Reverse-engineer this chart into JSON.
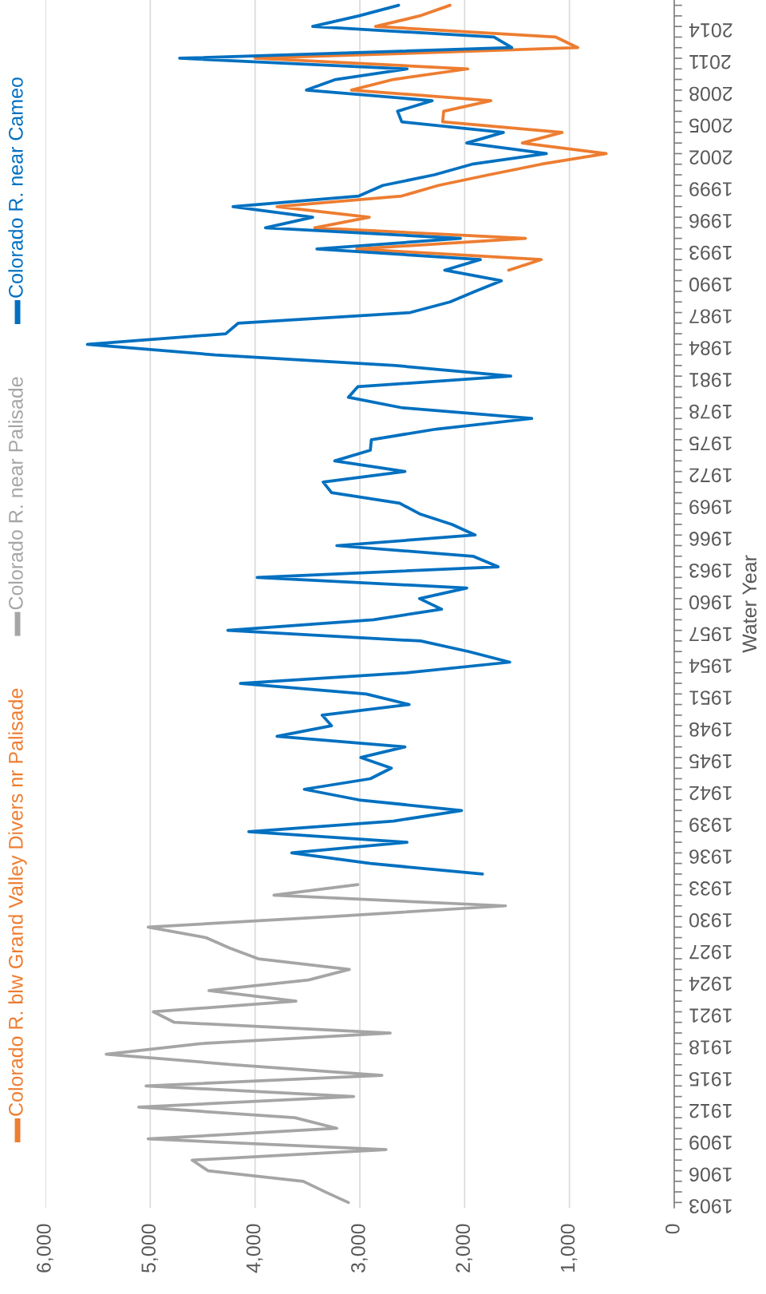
{
  "chart_data": {
    "type": "line",
    "ylabel": "Water Year",
    "ylim": [
      1902.5,
      2016.5
    ],
    "yticks": [
      1903,
      {
        "value": 1904,
        "label": null
      },
      {
        "value": 1905,
        "label": null
      },
      1906,
      {
        "value": 1907,
        "label": null
      },
      {
        "value": 1908,
        "label": null
      },
      1909,
      {
        "value": 1910,
        "label": null
      },
      {
        "value": 1911,
        "label": null
      },
      1912,
      {
        "value": 1913,
        "label": null
      },
      {
        "value": 1914,
        "label": null
      },
      1915,
      {
        "value": 1916,
        "label": null
      },
      {
        "value": 1917,
        "label": null
      },
      1918,
      {
        "value": 1919,
        "label": null
      },
      {
        "value": 1920,
        "label": null
      },
      1921,
      {
        "value": 1922,
        "label": null
      },
      {
        "value": 1923,
        "label": null
      },
      1924,
      {
        "value": 1925,
        "label": null
      },
      {
        "value": 1926,
        "label": null
      },
      1927,
      {
        "value": 1928,
        "label": null
      },
      {
        "value": 1929,
        "label": null
      },
      1930,
      {
        "value": 1931,
        "label": null
      },
      {
        "value": 1932,
        "label": null
      },
      1933,
      {
        "value": 1934,
        "label": null
      },
      {
        "value": 1935,
        "label": null
      },
      1936,
      {
        "value": 1937,
        "label": null
      },
      {
        "value": 1938,
        "label": null
      },
      1939,
      {
        "value": 1940,
        "label": null
      },
      {
        "value": 1941,
        "label": null
      },
      1942,
      {
        "value": 1943,
        "label": null
      },
      {
        "value": 1944,
        "label": null
      },
      1945,
      {
        "value": 1946,
        "label": null
      },
      {
        "value": 1947,
        "label": null
      },
      1948,
      {
        "value": 1949,
        "label": null
      },
      {
        "value": 1950,
        "label": null
      },
      1951,
      {
        "value": 1952,
        "label": null
      },
      {
        "value": 1953,
        "label": null
      },
      1954,
      {
        "value": 1955,
        "label": null
      },
      {
        "value": 1956,
        "label": null
      },
      1957,
      {
        "value": 1958,
        "label": null
      },
      {
        "value": 1959,
        "label": null
      },
      1960,
      {
        "value": 1961,
        "label": null
      },
      {
        "value": 1962,
        "label": null
      },
      1963,
      {
        "value": 1964,
        "label": null
      },
      {
        "value": 1965,
        "label": null
      },
      1966,
      {
        "value": 1967,
        "label": null
      },
      {
        "value": 1968,
        "label": null
      },
      1969,
      {
        "value": 1970,
        "label": null
      },
      {
        "value": 1971,
        "label": null
      },
      1972,
      {
        "value": 1973,
        "label": null
      },
      {
        "value": 1974,
        "label": null
      },
      1975,
      {
        "value": 1976,
        "label": null
      },
      {
        "value": 1977,
        "label": null
      },
      1978,
      {
        "value": 1979,
        "label": null
      },
      {
        "value": 1980,
        "label": null
      },
      1981,
      {
        "value": 1982,
        "label": null
      },
      {
        "value": 1983,
        "label": null
      },
      1984,
      {
        "value": 1985,
        "label": null
      },
      {
        "value": 1986,
        "label": null
      },
      1987,
      {
        "value": 1988,
        "label": null
      },
      {
        "value": 1989,
        "label": null
      },
      1990,
      {
        "value": 1991,
        "label": null
      },
      {
        "value": 1992,
        "label": null
      },
      1993,
      {
        "value": 1994,
        "label": null
      },
      {
        "value": 1995,
        "label": null
      },
      1996,
      {
        "value": 1997,
        "label": null
      },
      {
        "value": 1998,
        "label": null
      },
      1999,
      {
        "value": 2000,
        "label": null
      },
      {
        "value": 2001,
        "label": null
      },
      2002,
      {
        "value": 2003,
        "label": null
      },
      {
        "value": 2004,
        "label": null
      },
      2005,
      {
        "value": 2006,
        "label": null
      },
      {
        "value": 2007,
        "label": null
      },
      2008,
      {
        "value": 2009,
        "label": null
      },
      {
        "value": 2010,
        "label": null
      },
      2011,
      {
        "value": 2012,
        "label": null
      },
      {
        "value": 2013,
        "label": null
      },
      2014,
      {
        "value": 2015,
        "label": null
      },
      {
        "value": 2016,
        "label": null
      }
    ],
    "xlim": [
      6000,
      0
    ],
    "xticks": [
      0,
      {
        "value": 1000,
        "label": "1,000"
      },
      {
        "value": 2000,
        "label": "2,000"
      },
      {
        "value": 3000,
        "label": "3,000"
      },
      {
        "value": 4000,
        "label": "4,000"
      },
      {
        "value": 5000,
        "label": "5,000"
      },
      {
        "value": 6000,
        "label": "6,000"
      }
    ],
    "grid": "x",
    "legend": "left",
    "marker": "none",
    "line_style": "solid",
    "series": [
      {
        "name": "Colorado R. blw Grand Valley Divers nr Palisade",
        "color": "#ed7d31",
        "values": [
          1991,
          1992,
          1993,
          1994,
          1995,
          1996,
          1997,
          1998,
          1999,
          2000,
          2001,
          2002,
          2003,
          2004,
          2005,
          2006,
          2007,
          2008,
          2009,
          2010,
          2011,
          2012,
          2013,
          2014,
          2015,
          2016
        ],
        "x": [
          1580,
          1270,
          3030,
          1420,
          3430,
          2910,
          3790,
          2600,
          2250,
          1770,
          1270,
          650,
          1450,
          1070,
          2210,
          2200,
          1750,
          3080,
          2680,
          1970,
          4000,
          920,
          1130,
          2850,
          2430,
          2140
        ]
      },
      {
        "name": "Colorado R. near Palisade",
        "color": "#a5a5a5",
        "values": [
          1903,
          1904,
          1905,
          1906,
          1907,
          1908,
          1909,
          1910,
          1911,
          1912,
          1913,
          1914,
          1915,
          1916,
          1917,
          1918,
          1919,
          1920,
          1921,
          1922,
          1923,
          1924,
          1925,
          1926,
          1927,
          1928,
          1929,
          1930,
          1931,
          1932,
          1933
        ],
        "x": [
          3110,
          3330,
          3540,
          4450,
          4600,
          2750,
          5020,
          3220,
          3620,
          5110,
          3060,
          5040,
          2790,
          4200,
          5420,
          4520,
          2710,
          4770,
          4970,
          3610,
          4440,
          3490,
          3100,
          3970,
          4240,
          4470,
          5020,
          3260,
          1610,
          3820,
          3020
        ]
      },
      {
        "name": "Colorado R. near Cameo",
        "color": "#0070c0",
        "values": [
          1934,
          1935,
          1936,
          1937,
          1938,
          1939,
          1940,
          1941,
          1942,
          1943,
          1944,
          1945,
          1946,
          1947,
          1948,
          1949,
          1950,
          1951,
          1952,
          1953,
          1954,
          1955,
          1956,
          1957,
          1958,
          1959,
          1960,
          1961,
          1962,
          1963,
          1964,
          1965,
          1966,
          1967,
          1968,
          1969,
          1970,
          1971,
          1972,
          1973,
          1974,
          1975,
          1976,
          1977,
          1978,
          1979,
          1980,
          1981,
          1982,
          1983,
          1984,
          1985,
          1986,
          1987,
          1988,
          1989,
          1990,
          1991,
          1992,
          1993,
          1994,
          1995,
          1996,
          1997,
          1998,
          1999,
          2000,
          2001,
          2002,
          2003,
          2004,
          2005,
          2006,
          2007,
          2008,
          2009,
          2010,
          2011,
          2012,
          2013,
          2014,
          2015,
          2016
        ],
        "x": [
          1830,
          2900,
          3650,
          2550,
          4060,
          2680,
          2030,
          3010,
          3530,
          2900,
          2700,
          2990,
          2570,
          3790,
          3270,
          3360,
          2530,
          2940,
          4140,
          2560,
          1570,
          1960,
          2420,
          4260,
          2870,
          2220,
          2430,
          1980,
          3980,
          1680,
          1920,
          3220,
          1900,
          2120,
          2430,
          2620,
          3270,
          3350,
          2570,
          3240,
          2900,
          2890,
          2270,
          1360,
          2590,
          3110,
          3020,
          1560,
          2660,
          4380,
          5600,
          4280,
          4160,
          2520,
          2140,
          1900,
          1650,
          2190,
          1850,
          3410,
          2040,
          3900,
          3450,
          4210,
          3010,
          2780,
          2290,
          1930,
          1220,
          1980,
          1630,
          2600,
          2640,
          2310,
          3510,
          3230,
          2550,
          4720,
          1550,
          1720,
          3450,
          3010,
          2630
        ]
      }
    ]
  }
}
